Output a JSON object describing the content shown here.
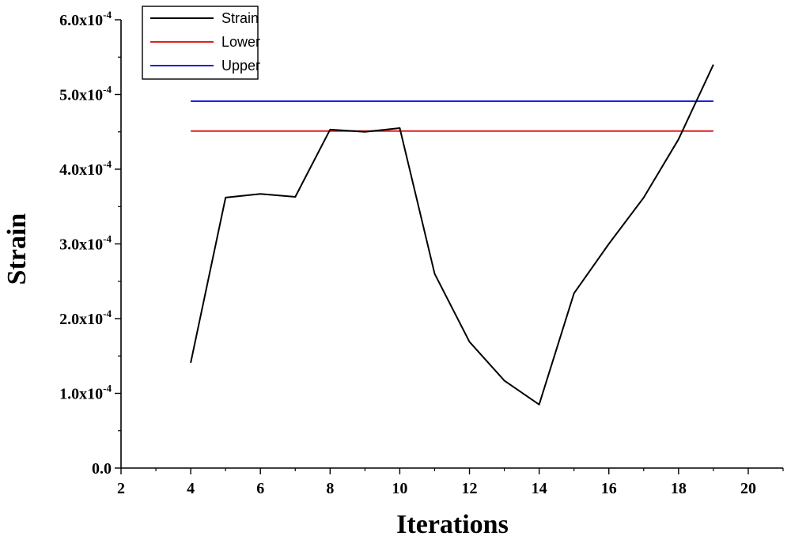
{
  "chart_data": {
    "type": "line",
    "title": "",
    "xlabel": "Iterations",
    "ylabel": "Strain",
    "xlim": [
      2,
      21
    ],
    "ylim": [
      0,
      0.0006
    ],
    "x_ticks": [
      2,
      4,
      6,
      8,
      10,
      12,
      14,
      16,
      18,
      20
    ],
    "x_tick_labels": [
      "2",
      "4",
      "6",
      "8",
      "10",
      "12",
      "14",
      "16",
      "18",
      "20"
    ],
    "y_ticks": [
      0,
      0.0001,
      0.0002,
      0.0003,
      0.0004,
      0.0005,
      0.0006
    ],
    "y_tick_labels": [
      {
        "mantissa": "0.0",
        "exp": ""
      },
      {
        "mantissa": "1.0x10",
        "exp": "-4"
      },
      {
        "mantissa": "2.0x10",
        "exp": "-4"
      },
      {
        "mantissa": "3.0x10",
        "exp": "-4"
      },
      {
        "mantissa": "4.0x10",
        "exp": "-4"
      },
      {
        "mantissa": "5.0x10",
        "exp": "-4"
      },
      {
        "mantissa": "6.0x10",
        "exp": "-4"
      }
    ],
    "grid": false,
    "legend_position": "top-left",
    "series": [
      {
        "name": "Strain",
        "color": "#000000",
        "x": [
          4,
          5,
          6,
          7,
          8,
          9,
          10,
          11,
          12,
          13,
          14,
          15,
          16,
          17,
          18,
          19
        ],
        "y": [
          0.000141,
          0.000362,
          0.000367,
          0.000363,
          0.000453,
          0.00045,
          0.000455,
          0.00026,
          0.000169,
          0.000117,
          8.5e-05,
          0.000234,
          0.0003,
          0.000362,
          0.00044,
          0.00054
        ]
      },
      {
        "name": "Lower",
        "color": "#e02020",
        "x": [
          4,
          19
        ],
        "y": [
          0.000451,
          0.000451
        ]
      },
      {
        "name": "Upper",
        "color": "#2020e0",
        "x": [
          4,
          19
        ],
        "y": [
          0.000491,
          0.000491
        ]
      }
    ]
  }
}
